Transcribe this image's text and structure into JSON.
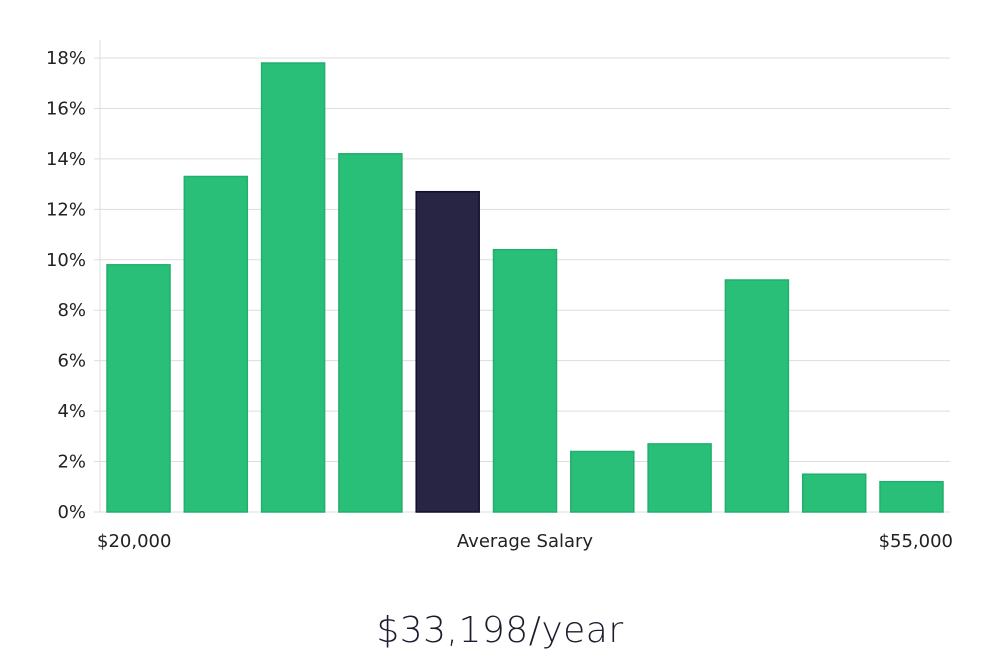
{
  "chart_data": {
    "type": "bar",
    "title": "",
    "ylabel": "",
    "xlabel": "Average Salary",
    "ylim": [
      0,
      18
    ],
    "yticks": [
      0,
      2,
      4,
      6,
      8,
      10,
      12,
      14,
      16,
      18
    ],
    "ytick_labels": [
      "0%",
      "2%",
      "4%",
      "6%",
      "8%",
      "10%",
      "12%",
      "14%",
      "16%",
      "18%"
    ],
    "x_start_label": "$20,000",
    "x_end_label": "$55,000",
    "values": [
      9.8,
      13.3,
      17.8,
      14.2,
      12.7,
      10.4,
      2.4,
      2.7,
      9.2,
      1.5,
      1.2
    ],
    "highlight_index": 4,
    "grid": true,
    "colors": {
      "bar": "#2abf78",
      "bar_border": "#20b06c",
      "highlight": "#272444",
      "highlight_border": "#12102a"
    }
  },
  "summary": {
    "salary_text": "$33,198/year"
  }
}
